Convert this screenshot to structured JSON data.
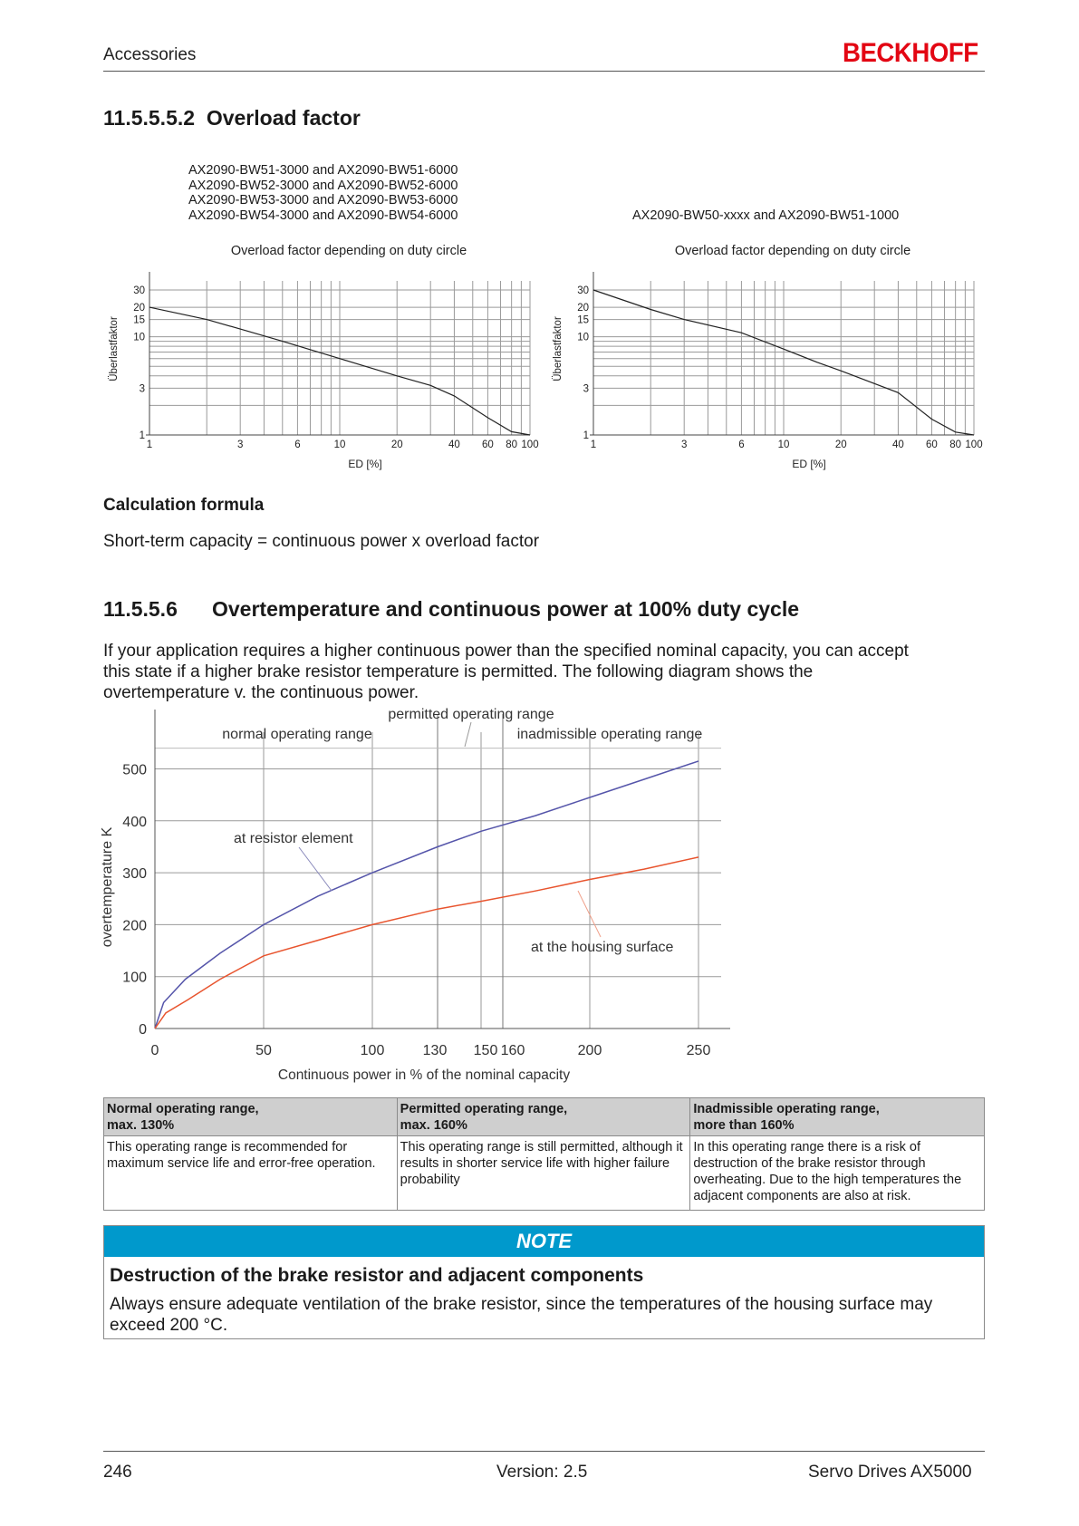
{
  "header": {
    "section": "Accessories",
    "logo": "BECKHOFF"
  },
  "section_overload": {
    "number": "11.5.5.5.2",
    "title": "Overload factor"
  },
  "chart_left_models": [
    "AX2090-BW51-3000 and AX2090-BW51-6000",
    "AX2090-BW52-3000 and AX2090-BW52-6000",
    "AX2090-BW53-3000 and AX2090-BW53-6000",
    "AX2090-BW54-3000 and AX2090-BW54-6000"
  ],
  "chart_right_models": "AX2090-BW50-xxxx and AX2090-BW51-1000",
  "calc": {
    "heading": "Calculation formula",
    "formula": "Short-term capacity = continuous power x overload factor"
  },
  "section_overtemp": {
    "number": "11.5.5.6",
    "title": "Overtemperature and continuous power at 100% duty cycle",
    "intro_lines": [
      "If your application requires a higher continuous power than the specified nominal capacity, you can accept",
      "this state if a higher brake resistor temperature is permitted. The following diagram shows the",
      "overtemperature v. the continuous power."
    ]
  },
  "chart_data": [
    {
      "type": "line",
      "title": "Overload factor depending on duty circle",
      "xlabel": "ED [%]",
      "ylabel": "Überlastfaktor",
      "x_scale": "log",
      "y_scale": "log",
      "xlim": [
        1,
        100
      ],
      "ylim": [
        1,
        30
      ],
      "x_ticks": [
        1,
        3,
        6,
        10,
        20,
        40,
        60,
        80,
        100
      ],
      "y_ticks": [
        1,
        3,
        10,
        15,
        20,
        30
      ],
      "grid": true,
      "series": [
        {
          "x": [
            1,
            2,
            3,
            5,
            10,
            20,
            30,
            40,
            60,
            80,
            100
          ],
          "y": [
            20,
            15,
            12,
            9,
            6,
            4,
            3.2,
            2.5,
            1.5,
            1.08,
            1
          ]
        }
      ]
    },
    {
      "type": "line",
      "title": "Overload factor depending on duty circle",
      "xlabel": "ED [%]",
      "ylabel": "Überlastfaktor",
      "x_scale": "log",
      "y_scale": "log",
      "xlim": [
        1,
        100
      ],
      "ylim": [
        1,
        30
      ],
      "x_ticks": [
        1,
        3,
        6,
        10,
        20,
        40,
        60,
        80,
        100
      ],
      "y_ticks": [
        1,
        3,
        10,
        15,
        20,
        30
      ],
      "grid": true,
      "series": [
        {
          "x": [
            1,
            2,
            3,
            6,
            10,
            15,
            20,
            40,
            60,
            80,
            100
          ],
          "y": [
            30,
            19,
            15,
            11,
            7.5,
            5.5,
            4.5,
            2.7,
            1.45,
            1.07,
            1
          ]
        }
      ]
    },
    {
      "type": "line",
      "xlabel": "Continuous power in % of the nominal capacity",
      "ylabel": "overtemperature K",
      "xlim": [
        0,
        260
      ],
      "ylim": [
        0,
        550
      ],
      "x_ticks": [
        0,
        50,
        100,
        130,
        150,
        160,
        200,
        250
      ],
      "y_ticks": [
        0,
        100,
        200,
        300,
        400,
        500
      ],
      "grid": true,
      "range_labels": [
        "normal operating range",
        "permitted operating range",
        "inadmissible operating range"
      ],
      "series": [
        {
          "name": "at resistor element",
          "color": "#5555aa",
          "x": [
            0,
            4,
            14,
            30,
            50,
            75,
            100,
            130,
            150,
            175,
            200,
            225,
            250
          ],
          "y": [
            0,
            50,
            95,
            145,
            200,
            255,
            300,
            350,
            380,
            410,
            445,
            480,
            515
          ]
        },
        {
          "name": "at the housing surface",
          "color": "#e8542e",
          "x": [
            0,
            5,
            15,
            30,
            50,
            75,
            100,
            130,
            150,
            175,
            200,
            225,
            250
          ],
          "y": [
            0,
            30,
            55,
            95,
            140,
            170,
            200,
            230,
            245,
            265,
            287,
            307,
            330
          ]
        }
      ]
    }
  ],
  "ranges_table": {
    "headers": [
      [
        "Normal operating range,",
        "max. 130%"
      ],
      [
        "Permitted operating range,",
        "max. 160%"
      ],
      [
        "Inadmissible operating range,",
        "more than 160%"
      ]
    ],
    "rows": [
      [
        "This operating range is recommended for maximum service life and error-free operation.",
        "This operating range is still permitted, although it results in shorter service life with higher failure probability",
        "In this operating range there is a risk of destruction of the brake resistor through overheating. Due to the high temperatures the adjacent components are also at risk."
      ]
    ]
  },
  "note": {
    "label": "NOTE",
    "title": "Destruction of the brake resistor and adjacent components",
    "text": "Always ensure adequate ventilation of the brake resistor, since the temperatures of the housing surface may exceed 200 °C."
  },
  "footer": {
    "page": "246",
    "version": "Version: 2.5",
    "product": "Servo Drives AX5000"
  },
  "colors": {
    "note_bar": "#0099cc",
    "logo": "#e30613",
    "table_header": "#cfcfcf"
  }
}
